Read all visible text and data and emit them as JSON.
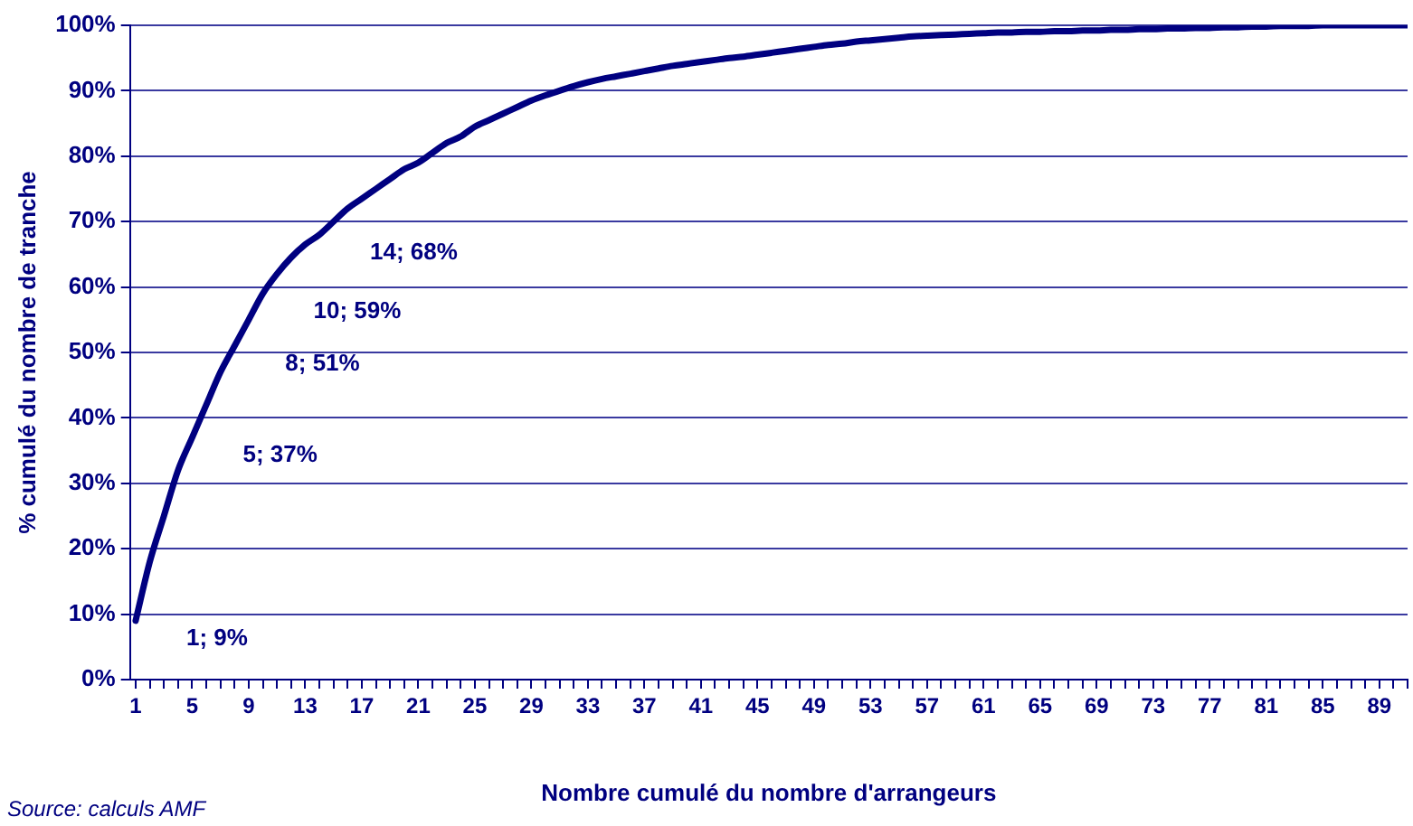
{
  "chart_data": {
    "type": "line",
    "xlabel": "Nombre cumulé du nombre d'arrangeurs",
    "ylabel": "% cumulé du nombre de tranche",
    "x": [
      1,
      2,
      3,
      4,
      5,
      6,
      7,
      8,
      9,
      10,
      11,
      12,
      13,
      14,
      15,
      16,
      17,
      18,
      19,
      20,
      21,
      22,
      23,
      24,
      25,
      26,
      27,
      28,
      29,
      30,
      31,
      32,
      33,
      34,
      35,
      36,
      37,
      38,
      39,
      40,
      41,
      42,
      43,
      44,
      45,
      46,
      47,
      48,
      49,
      50,
      51,
      52,
      53,
      54,
      55,
      56,
      57,
      58,
      59,
      60,
      61,
      62,
      63,
      64,
      65,
      66,
      67,
      68,
      69,
      70,
      71,
      72,
      73,
      74,
      75,
      76,
      77,
      78,
      79,
      80,
      81,
      82,
      83,
      84,
      85,
      86,
      87,
      88,
      89,
      90,
      91
    ],
    "series": [
      {
        "color": "#000080",
        "values": [
          9,
          18,
          25,
          32,
          37,
          42,
          47,
          51,
          55,
          59,
          62,
          64.5,
          66.5,
          68,
          70,
          72,
          73.5,
          75,
          76.5,
          78,
          79,
          80.5,
          82,
          83,
          84.5,
          85.5,
          86.5,
          87.5,
          88.5,
          89.3,
          90,
          90.7,
          91.3,
          91.8,
          92.2,
          92.6,
          93,
          93.4,
          93.8,
          94.1,
          94.4,
          94.7,
          95,
          95.2,
          95.5,
          95.8,
          96.1,
          96.4,
          96.7,
          97,
          97.2,
          97.5,
          97.7,
          97.9,
          98.1,
          98.3,
          98.4,
          98.5,
          98.6,
          98.7,
          98.8,
          98.9,
          98.9,
          99,
          99,
          99.1,
          99.1,
          99.2,
          99.2,
          99.3,
          99.3,
          99.4,
          99.4,
          99.5,
          99.5,
          99.6,
          99.6,
          99.7,
          99.7,
          99.8,
          99.8,
          99.9,
          99.9,
          99.9,
          100,
          100,
          100,
          100,
          100,
          100,
          100
        ]
      }
    ],
    "xlim": [
      0.6,
      91
    ],
    "xticks": [
      1,
      {
        "value": 2,
        "label": null
      },
      {
        "value": 3,
        "label": null
      },
      {
        "value": 4,
        "label": null
      },
      5,
      {
        "value": 6,
        "label": null
      },
      {
        "value": 7,
        "label": null
      },
      {
        "value": 8,
        "label": null
      },
      9,
      {
        "value": 10,
        "label": null
      },
      {
        "value": 11,
        "label": null
      },
      {
        "value": 12,
        "label": null
      },
      13,
      {
        "value": 14,
        "label": null
      },
      {
        "value": 15,
        "label": null
      },
      {
        "value": 16,
        "label": null
      },
      17,
      {
        "value": 18,
        "label": null
      },
      {
        "value": 19,
        "label": null
      },
      {
        "value": 20,
        "label": null
      },
      21,
      {
        "value": 22,
        "label": null
      },
      {
        "value": 23,
        "label": null
      },
      {
        "value": 24,
        "label": null
      },
      25,
      {
        "value": 26,
        "label": null
      },
      {
        "value": 27,
        "label": null
      },
      {
        "value": 28,
        "label": null
      },
      29,
      {
        "value": 30,
        "label": null
      },
      {
        "value": 31,
        "label": null
      },
      {
        "value": 32,
        "label": null
      },
      33,
      {
        "value": 34,
        "label": null
      },
      {
        "value": 35,
        "label": null
      },
      {
        "value": 36,
        "label": null
      },
      37,
      {
        "value": 38,
        "label": null
      },
      {
        "value": 39,
        "label": null
      },
      {
        "value": 40,
        "label": null
      },
      41,
      {
        "value": 42,
        "label": null
      },
      {
        "value": 43,
        "label": null
      },
      {
        "value": 44,
        "label": null
      },
      45,
      {
        "value": 46,
        "label": null
      },
      {
        "value": 47,
        "label": null
      },
      {
        "value": 48,
        "label": null
      },
      49,
      {
        "value": 50,
        "label": null
      },
      {
        "value": 51,
        "label": null
      },
      {
        "value": 52,
        "label": null
      },
      53,
      {
        "value": 54,
        "label": null
      },
      {
        "value": 55,
        "label": null
      },
      {
        "value": 56,
        "label": null
      },
      57,
      {
        "value": 58,
        "label": null
      },
      {
        "value": 59,
        "label": null
      },
      {
        "value": 60,
        "label": null
      },
      61,
      {
        "value": 62,
        "label": null
      },
      {
        "value": 63,
        "label": null
      },
      {
        "value": 64,
        "label": null
      },
      65,
      {
        "value": 66,
        "label": null
      },
      {
        "value": 67,
        "label": null
      },
      {
        "value": 68,
        "label": null
      },
      69,
      {
        "value": 70,
        "label": null
      },
      {
        "value": 71,
        "label": null
      },
      {
        "value": 72,
        "label": null
      },
      73,
      {
        "value": 74,
        "label": null
      },
      {
        "value": 75,
        "label": null
      },
      {
        "value": 76,
        "label": null
      },
      77,
      {
        "value": 78,
        "label": null
      },
      {
        "value": 79,
        "label": null
      },
      {
        "value": 80,
        "label": null
      },
      81,
      {
        "value": 82,
        "label": null
      },
      {
        "value": 83,
        "label": null
      },
      {
        "value": 84,
        "label": null
      },
      85,
      {
        "value": 86,
        "label": null
      },
      {
        "value": 87,
        "label": null
      },
      {
        "value": 88,
        "label": null
      },
      89,
      {
        "value": 90,
        "label": null
      },
      {
        "value": 91,
        "label": null
      }
    ],
    "ylim": [
      0,
      100
    ],
    "yticks": [
      {
        "value": 0,
        "label": "0%"
      },
      {
        "value": 10,
        "label": "10%"
      },
      {
        "value": 20,
        "label": "20%"
      },
      {
        "value": 30,
        "label": "30%"
      },
      {
        "value": 40,
        "label": "40%"
      },
      {
        "value": 50,
        "label": "50%"
      },
      {
        "value": 60,
        "label": "60%"
      },
      {
        "value": 70,
        "label": "70%"
      },
      {
        "value": 80,
        "label": "80%"
      },
      {
        "value": 90,
        "label": "90%"
      },
      {
        "value": 100,
        "label": "100%"
      }
    ],
    "grid": "y",
    "legend": false,
    "marker": "none",
    "line_style": "solid",
    "annotations": [
      {
        "text": "1; 9%",
        "x": 1,
        "y": 9
      },
      {
        "text": "5; 37%",
        "x": 5,
        "y": 37
      },
      {
        "text": "8; 51%",
        "x": 8,
        "y": 51
      },
      {
        "text": "10; 59%",
        "x": 10,
        "y": 59
      },
      {
        "text": "14; 68%",
        "x": 14,
        "y": 68
      },
      "Source: calculs AMF"
    ]
  }
}
